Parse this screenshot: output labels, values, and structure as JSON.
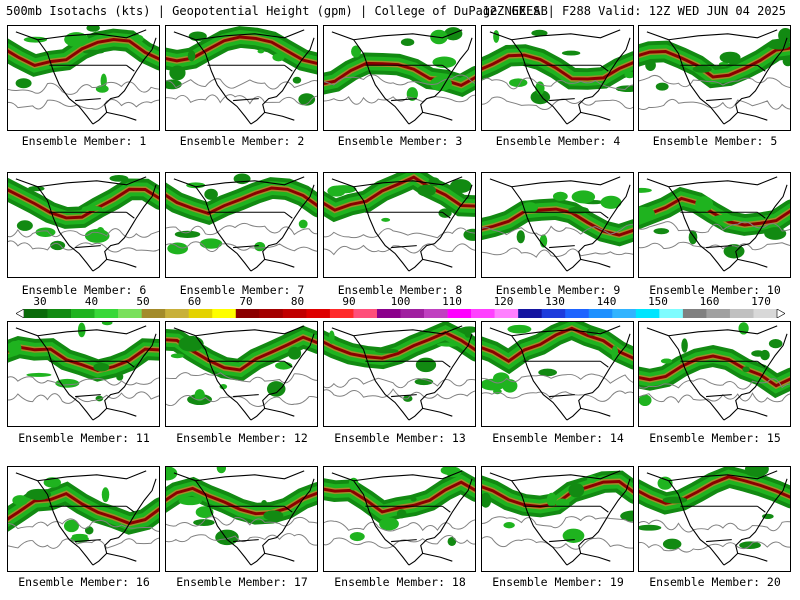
{
  "header": {
    "left_title": "500mb Isotachs (kts) | Geopotential Height (gpm) | College of DuPage NEXLAB",
    "right_title": "12Z GEFS | F288 Valid: 12Z WED JUN 04 2025"
  },
  "colorbar": {
    "labels": [
      "30",
      "40",
      "50",
      "60",
      "70",
      "80",
      "90",
      "100",
      "110",
      "120",
      "130",
      "140",
      "150",
      "160",
      "170"
    ],
    "colors": [
      "#0a6b0a",
      "#128a12",
      "#1fb31f",
      "#38d838",
      "#7ae05c",
      "#a38b2a",
      "#c8b03a",
      "#e4d200",
      "#ffff00",
      "#8b0000",
      "#a30000",
      "#c00000",
      "#de0000",
      "#ff2a2a",
      "#ff4f7a",
      "#8b008b",
      "#a020a0",
      "#c040c0",
      "#ff00ff",
      "#ff40ff",
      "#ff80ff",
      "#1414a0",
      "#1e3cdc",
      "#1e64ff",
      "#1e90ff",
      "#32b4ff",
      "#00e5ff",
      "#7ffcff",
      "#808080",
      "#a0a0a0",
      "#c0c0c0",
      "#d8d8d8"
    ]
  },
  "members": [
    {
      "label": "Ensemble Member: 1"
    },
    {
      "label": "Ensemble Member: 2"
    },
    {
      "label": "Ensemble Member: 3"
    },
    {
      "label": "Ensemble Member: 4"
    },
    {
      "label": "Ensemble Member: 5"
    },
    {
      "label": "Ensemble Member: 6"
    },
    {
      "label": "Ensemble Member: 7"
    },
    {
      "label": "Ensemble Member: 8"
    },
    {
      "label": "Ensemble Member: 9"
    },
    {
      "label": "Ensemble Member: 10"
    },
    {
      "label": "Ensemble Member: 11"
    },
    {
      "label": "Ensemble Member: 12"
    },
    {
      "label": "Ensemble Member: 13"
    },
    {
      "label": "Ensemble Member: 14"
    },
    {
      "label": "Ensemble Member: 15"
    },
    {
      "label": "Ensemble Member: 16"
    },
    {
      "label": "Ensemble Member: 17"
    },
    {
      "label": "Ensemble Member: 18"
    },
    {
      "label": "Ensemble Member: 19"
    },
    {
      "label": "Ensemble Member: 20"
    }
  ]
}
